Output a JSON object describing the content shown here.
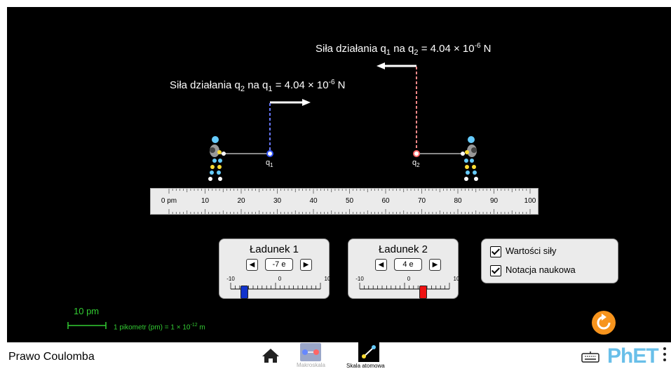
{
  "force_on_q1": {
    "prefix": "Siła działania q",
    "sub_a": "2",
    "mid": " na q",
    "sub_b": "1",
    "eq": "  = 4.04 × 10",
    "exp": "-6",
    "unit": " N"
  },
  "force_on_q2": {
    "prefix": "Siła działania q",
    "sub_a": "1",
    "mid": " na q",
    "sub_b": "2",
    "eq": "  = 4.04 × 10",
    "exp": "-6",
    "unit": " N"
  },
  "charges": {
    "q1": {
      "label": "q",
      "sub": "1",
      "color": "#3355ff",
      "position_pm": 30
    },
    "q2": {
      "label": "q",
      "sub": "2",
      "color": "#ff6666",
      "position_pm": 70
    }
  },
  "ruler": {
    "ticks": [
      "0 pm",
      "10",
      "20",
      "30",
      "40",
      "50",
      "60",
      "70",
      "80",
      "90",
      "100"
    ]
  },
  "charge1": {
    "title": "Ładunek 1",
    "value": "-7 e",
    "slider_min": "-10",
    "slider_mid": "0",
    "slider_max": "10",
    "slider_value": -7,
    "thumb_color": "#1133cc"
  },
  "charge2": {
    "title": "Ładunek 2",
    "value": "4 e",
    "slider_min": "-10",
    "slider_mid": "0",
    "slider_max": "10",
    "slider_value": 4,
    "thumb_color": "#ee1111"
  },
  "options": {
    "force_values": "Wartości siły",
    "scientific": "Notacja naukowa"
  },
  "scale": {
    "length": "10 pm",
    "def_prefix": "1 pikometr  (pm) = 1 × 10",
    "def_exp": "-12",
    "def_unit": " m"
  },
  "navbar": {
    "title": "Prawo Coulomba",
    "screen1": "Makroskala",
    "screen2": "Skala atomowa",
    "brand": "PhET"
  }
}
